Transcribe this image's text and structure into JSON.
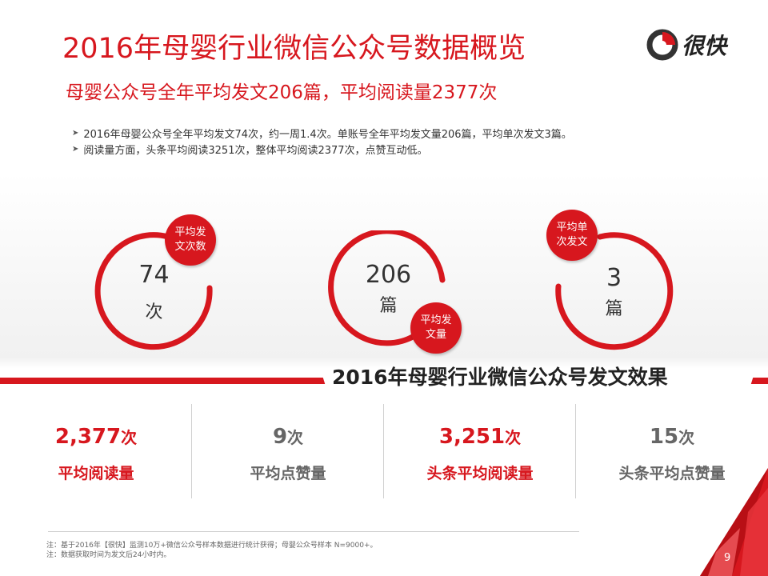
{
  "title": "2016年母婴行业微信公众号数据概览",
  "logo": {
    "text": "很快"
  },
  "subtitle": "母婴公众号全年平均发文206篇，平均阅读量2377次",
  "bullets": [
    "2016年母婴公众号全年平均发文74次，约一周1.4次。单账号全年平均发文量206篇，平均单次发文3篇。",
    "阅读量方面，头条平均阅读3251次，整体平均阅读2377次，点赞互动低。"
  ],
  "rings": [
    {
      "value": "74",
      "unit": "次",
      "badge_line1": "平均发",
      "badge_line2": "文次数"
    },
    {
      "value": "206",
      "unit": "篇",
      "badge_line1": "平均发",
      "badge_line2": "文量"
    },
    {
      "value": "3",
      "unit": "篇",
      "badge_line1": "平均单",
      "badge_line2": "次发文"
    }
  ],
  "section_title": "2016年母婴行业微信公众号发文效果",
  "metrics": [
    {
      "value": "2,377",
      "unit": "次",
      "label": "平均阅读量"
    },
    {
      "value": "9",
      "unit": "次",
      "label": "平均点赞量"
    },
    {
      "value": "3,251",
      "unit": "次",
      "label": "头条平均阅读量"
    },
    {
      "value": "15",
      "unit": "次",
      "label": "头条平均点赞量"
    }
  ],
  "notes": [
    "注：基于2016年【很快】监测10万+微信公众号样本数据进行统计获得；母婴公众号样本 N=9000+。",
    "注：数据获取时间为发文后24小时内。"
  ],
  "page_number": "9",
  "colors": {
    "accent": "#d7171e",
    "text": "#333333",
    "muted": "#666666"
  }
}
